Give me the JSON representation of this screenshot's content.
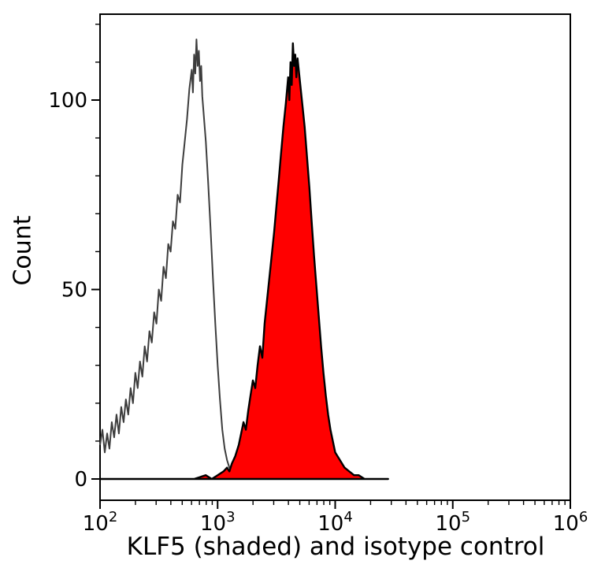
{
  "chart_data": {
    "type": "area",
    "subtype": "flow-cytometry-histogram-overlay",
    "title": "",
    "xlabel": "KLF5 (shaded) and isotype control",
    "ylabel": "Count",
    "x_scale": "log10",
    "x_range": [
      100,
      1000000
    ],
    "y_range": [
      0,
      123
    ],
    "x_major_ticks_exponents": [
      2,
      3,
      4,
      5,
      6
    ],
    "y_major_ticks": [
      0,
      50,
      100
    ],
    "y_minor_tick_step": 10,
    "grid": false,
    "legend": "none",
    "frame_color": "#000000",
    "series": [
      {
        "name": "isotype control",
        "style": "open",
        "line_color": "#3d3d3d",
        "fill": "none",
        "peak_x": 660,
        "peak_count": 116,
        "points_log10x_count": [
          [
            2.0,
            9
          ],
          [
            2.02,
            13
          ],
          [
            2.04,
            7
          ],
          [
            2.06,
            12
          ],
          [
            2.08,
            8
          ],
          [
            2.1,
            15
          ],
          [
            2.12,
            11
          ],
          [
            2.14,
            17
          ],
          [
            2.16,
            12
          ],
          [
            2.18,
            19
          ],
          [
            2.2,
            15
          ],
          [
            2.22,
            21
          ],
          [
            2.24,
            17
          ],
          [
            2.26,
            24
          ],
          [
            2.28,
            20
          ],
          [
            2.3,
            28
          ],
          [
            2.32,
            24
          ],
          [
            2.34,
            31
          ],
          [
            2.36,
            27
          ],
          [
            2.38,
            35
          ],
          [
            2.4,
            31
          ],
          [
            2.42,
            39
          ],
          [
            2.44,
            36
          ],
          [
            2.46,
            44
          ],
          [
            2.48,
            41
          ],
          [
            2.5,
            50
          ],
          [
            2.52,
            47
          ],
          [
            2.54,
            56
          ],
          [
            2.56,
            53
          ],
          [
            2.58,
            62
          ],
          [
            2.6,
            60
          ],
          [
            2.62,
            68
          ],
          [
            2.64,
            66
          ],
          [
            2.66,
            75
          ],
          [
            2.68,
            73
          ],
          [
            2.7,
            83
          ],
          [
            2.72,
            89
          ],
          [
            2.74,
            95
          ],
          [
            2.76,
            103
          ],
          [
            2.78,
            108
          ],
          [
            2.79,
            102
          ],
          [
            2.8,
            112
          ],
          [
            2.81,
            107
          ],
          [
            2.82,
            116
          ],
          [
            2.83,
            109
          ],
          [
            2.84,
            113
          ],
          [
            2.85,
            105
          ],
          [
            2.86,
            109
          ],
          [
            2.87,
            101
          ],
          [
            2.88,
            97
          ],
          [
            2.9,
            89
          ],
          [
            2.92,
            78
          ],
          [
            2.94,
            66
          ],
          [
            2.96,
            53
          ],
          [
            2.98,
            41
          ],
          [
            3.0,
            30
          ],
          [
            3.02,
            21
          ],
          [
            3.04,
            13
          ],
          [
            3.06,
            8
          ],
          [
            3.08,
            5
          ],
          [
            3.1,
            3
          ],
          [
            3.14,
            2
          ],
          [
            3.18,
            1
          ],
          [
            3.25,
            1
          ],
          [
            3.32,
            2
          ],
          [
            3.4,
            1
          ],
          [
            3.5,
            1
          ],
          [
            3.6,
            0
          ],
          [
            3.75,
            1
          ],
          [
            3.9,
            0
          ]
        ]
      },
      {
        "name": "KLF5 (shaded)",
        "style": "filled",
        "line_color": "#000000",
        "fill": "#ff0000",
        "peak_x": 4400,
        "peak_count": 115,
        "points_log10x_count": [
          [
            2.0,
            0
          ],
          [
            2.2,
            0
          ],
          [
            2.4,
            0
          ],
          [
            2.6,
            0
          ],
          [
            2.8,
            0
          ],
          [
            2.9,
            1
          ],
          [
            2.95,
            0
          ],
          [
            3.0,
            1
          ],
          [
            3.05,
            2
          ],
          [
            3.08,
            3
          ],
          [
            3.1,
            2
          ],
          [
            3.12,
            4
          ],
          [
            3.15,
            6
          ],
          [
            3.18,
            9
          ],
          [
            3.2,
            12
          ],
          [
            3.22,
            15
          ],
          [
            3.24,
            13
          ],
          [
            3.26,
            18
          ],
          [
            3.28,
            22
          ],
          [
            3.3,
            26
          ],
          [
            3.32,
            24
          ],
          [
            3.34,
            30
          ],
          [
            3.36,
            35
          ],
          [
            3.38,
            32
          ],
          [
            3.4,
            41
          ],
          [
            3.42,
            47
          ],
          [
            3.44,
            53
          ],
          [
            3.46,
            59
          ],
          [
            3.48,
            65
          ],
          [
            3.5,
            72
          ],
          [
            3.52,
            79
          ],
          [
            3.54,
            86
          ],
          [
            3.56,
            93
          ],
          [
            3.58,
            99
          ],
          [
            3.6,
            106
          ],
          [
            3.61,
            100
          ],
          [
            3.62,
            110
          ],
          [
            3.63,
            104
          ],
          [
            3.64,
            115
          ],
          [
            3.65,
            109
          ],
          [
            3.66,
            112
          ],
          [
            3.67,
            106
          ],
          [
            3.68,
            111
          ],
          [
            3.7,
            105
          ],
          [
            3.72,
            99
          ],
          [
            3.74,
            93
          ],
          [
            3.76,
            85
          ],
          [
            3.78,
            77
          ],
          [
            3.8,
            68
          ],
          [
            3.82,
            59
          ],
          [
            3.84,
            51
          ],
          [
            3.86,
            43
          ],
          [
            3.88,
            35
          ],
          [
            3.9,
            28
          ],
          [
            3.92,
            22
          ],
          [
            3.94,
            17
          ],
          [
            3.96,
            13
          ],
          [
            3.98,
            10
          ],
          [
            4.0,
            7
          ],
          [
            4.04,
            5
          ],
          [
            4.08,
            3
          ],
          [
            4.12,
            2
          ],
          [
            4.16,
            1
          ],
          [
            4.2,
            1
          ],
          [
            4.25,
            0
          ],
          [
            4.35,
            0
          ],
          [
            4.45,
            0
          ]
        ]
      }
    ]
  }
}
